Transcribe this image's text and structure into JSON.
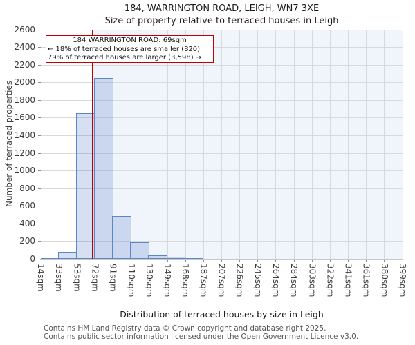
{
  "title": "184, WARRINGTON ROAD, LEIGH, WN7 3XE",
  "subtitle": "Size of property relative to terraced houses in Leigh",
  "annotation": {
    "line1": "184 WARRINGTON ROAD: 69sqm",
    "line2": "← 18% of terraced houses are smaller (820)",
    "line3": "79% of terraced houses are larger (3,598) →"
  },
  "footer": {
    "line1": "Contains HM Land Registry data © Crown copyright and database right 2025.",
    "line2": "Contains public sector information licensed under the Open Government Licence v3.0."
  },
  "chart_data": {
    "type": "bar",
    "title": "184, WARRINGTON ROAD, LEIGH, WN7 3XE",
    "subtitle": "Size of property relative to terraced houses in Leigh",
    "xlabel": "Distribution of terraced houses by size in Leigh",
    "ylabel": "Number of terraced properties",
    "x_tick_labels": [
      "14sqm",
      "33sqm",
      "53sqm",
      "72sqm",
      "91sqm",
      "110sqm",
      "130sqm",
      "149sqm",
      "168sqm",
      "187sqm",
      "207sqm",
      "226sqm",
      "245sqm",
      "264sqm",
      "284sqm",
      "303sqm",
      "322sqm",
      "341sqm",
      "361sqm",
      "380sqm",
      "399sqm"
    ],
    "x_min": 14,
    "x_max": 399,
    "bin_values": [
      10,
      80,
      1650,
      2050,
      490,
      190,
      40,
      25,
      10,
      0,
      0,
      0,
      0,
      0,
      0,
      0,
      0,
      0,
      0,
      0
    ],
    "ylim": [
      0,
      2600
    ],
    "ytick_step": 200,
    "marker_value": 69,
    "marker_label": "184 WARRINGTON ROAD: 69sqm",
    "shade_right_of_marker": true,
    "grid": true,
    "legend": "none"
  },
  "colors": {
    "marker_red": "#c00000",
    "bar_fill": "#4472c4",
    "bar_border": "#5b87c7",
    "shade_bg": "#f0f4fb",
    "gridline": "#d9d9d9",
    "title_text": "#1a1a1a",
    "tick_text": "#3c3c3c",
    "muted_text": "#555555"
  }
}
